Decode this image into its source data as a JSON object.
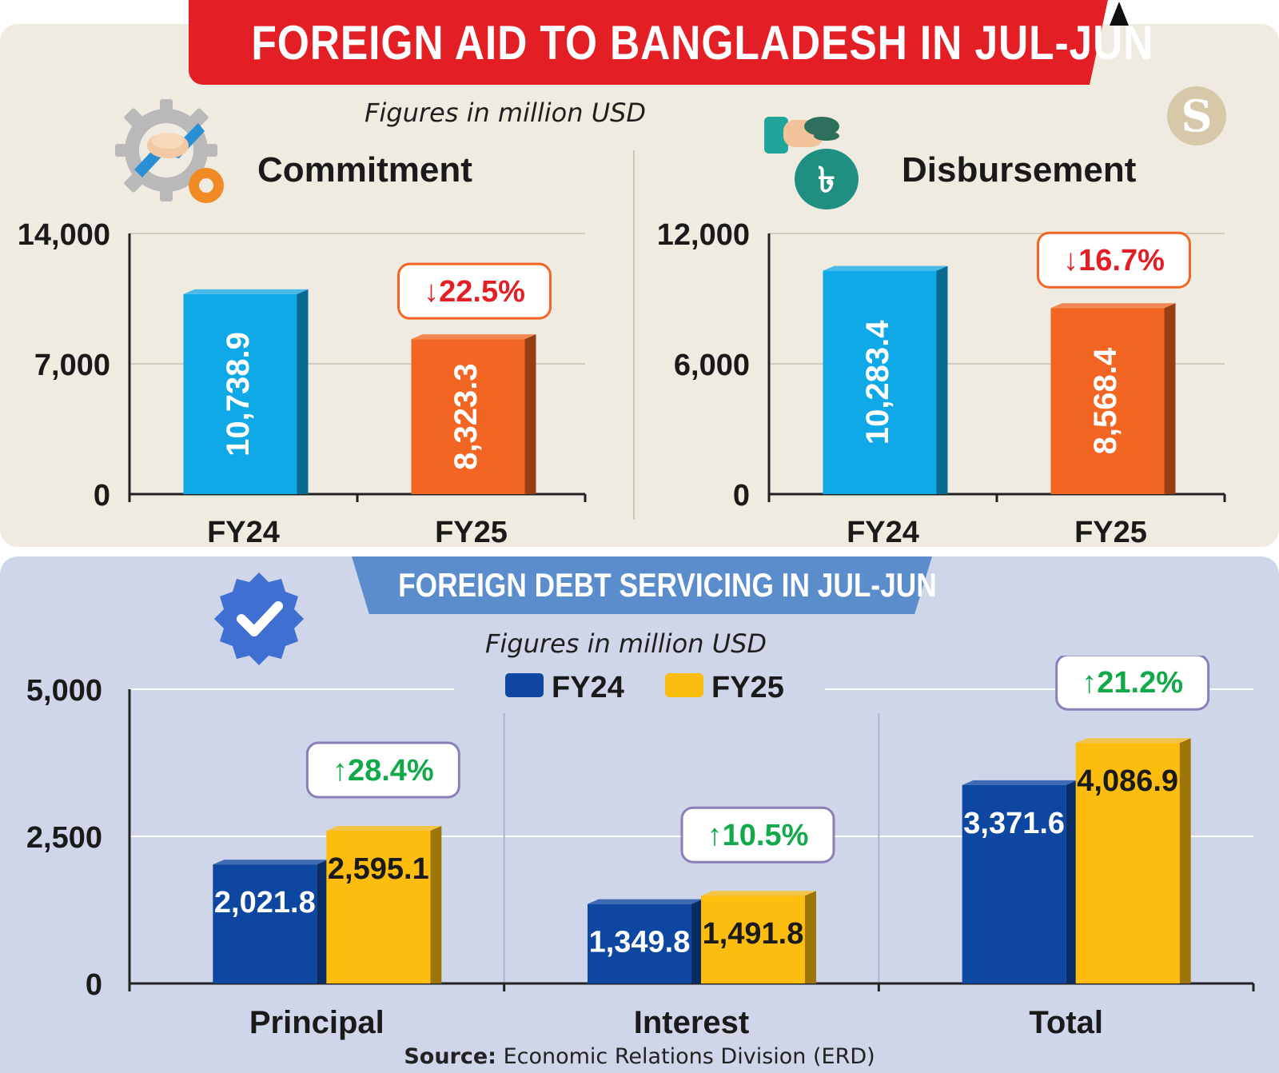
{
  "title": "FOREIGN AID TO BANGLADESH IN JUL-JUN",
  "top_subtitle": "Figures in million USD",
  "commitment": {
    "heading": "Commitment",
    "change_label": "22.5%"
  },
  "disbursement": {
    "heading": "Disbursement",
    "change_label": "16.7%"
  },
  "debt": {
    "title": "FOREIGN DEBT SERVICING IN JUL-JUN",
    "subtitle": "Figures in million USD",
    "legend": [
      "FY24",
      "FY25"
    ],
    "changes": [
      "28.4%",
      "10.5%",
      "21.2%"
    ]
  },
  "source_label": "Source:",
  "source_text": "Economic Relations Division (ERD)",
  "colors": {
    "red": "#e31e24",
    "fy24_top": "#0fa9e8",
    "fy25_top": "#f26522",
    "fy24_bottom": "#0d47a1",
    "fy25_bottom": "#fdbd0f",
    "down": "#e31e24",
    "up": "#12a94b"
  },
  "chart_data": [
    {
      "type": "bar",
      "title": "Commitment",
      "categories": [
        "FY24",
        "FY25"
      ],
      "values": [
        10738.9,
        8323.3
      ],
      "value_labels": [
        "10,738.9",
        "8,323.3"
      ],
      "ylim": [
        0,
        14000
      ],
      "yticks": [
        0,
        7000,
        14000
      ],
      "ytick_labels": [
        "0",
        "7,000",
        "14,000"
      ],
      "annotation": "↓22.5%",
      "grid": true
    },
    {
      "type": "bar",
      "title": "Disbursement",
      "categories": [
        "FY24",
        "FY25"
      ],
      "values": [
        10283.4,
        8568.4
      ],
      "value_labels": [
        "10,283.4",
        "8,568.4"
      ],
      "ylim": [
        0,
        12000
      ],
      "yticks": [
        0,
        6000,
        12000
      ],
      "ytick_labels": [
        "0",
        "6,000",
        "12,000"
      ],
      "annotation": "↓16.7%",
      "grid": true
    },
    {
      "type": "bar",
      "title": "FOREIGN DEBT SERVICING IN JUL-JUN",
      "categories": [
        "Principal",
        "Interest",
        "Total"
      ],
      "series": [
        {
          "name": "FY24",
          "values": [
            2021.8,
            1349.8,
            3371.6
          ],
          "labels": [
            "2,021.8",
            "1,349.8",
            "3,371.6"
          ]
        },
        {
          "name": "FY25",
          "values": [
            2595.1,
            1491.8,
            4086.9
          ],
          "labels": [
            "2,595.1",
            "1,491.8",
            "4,086.9"
          ]
        }
      ],
      "ylim": [
        0,
        5000
      ],
      "yticks": [
        0,
        2500,
        5000
      ],
      "ytick_labels": [
        "0",
        "2,500",
        "5,000"
      ],
      "annotations": [
        "↑28.4%",
        "↑10.5%",
        "↑21.2%"
      ],
      "legend": "top-center",
      "grid": true
    }
  ]
}
